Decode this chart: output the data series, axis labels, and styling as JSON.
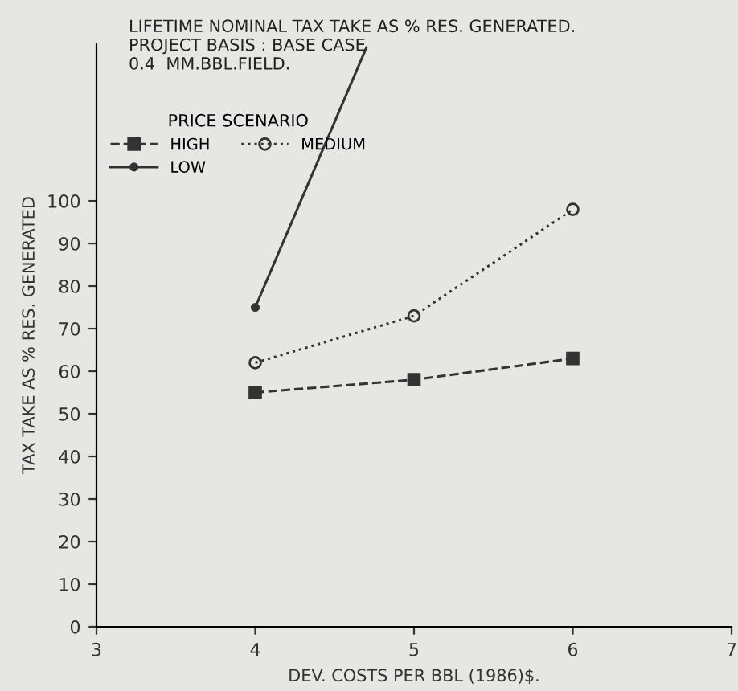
{
  "chart_data": {
    "type": "line",
    "title": "LIFETIME NOMINAL TAX TAKE AS % RES. GENERATED.\nPROJECT BASIS : BASE CASE\n0.4  MM.BBL.FIELD.",
    "xlabel": "DEV. COSTS PER BBL (1986)$.",
    "ylabel": "TAX TAKE AS % RES. GENERATED",
    "legend_title": "PRICE SCENARIO",
    "legend": "top",
    "grid": false,
    "xlim": [
      3,
      7
    ],
    "xticks": [
      3,
      4,
      5,
      6,
      7
    ],
    "ylim": [
      0,
      137
    ],
    "yticks": [
      0,
      10,
      20,
      30,
      40,
      50,
      60,
      70,
      80,
      90,
      100
    ],
    "series": [
      {
        "name": "HIGH",
        "color": "#333333",
        "x": [
          4,
          5,
          6
        ],
        "values": [
          55,
          58,
          63
        ],
        "marker": "square",
        "line_style": "dashed"
      },
      {
        "name": "LOW",
        "color": "#333333",
        "x": [
          4,
          4.7
        ],
        "values": [
          75,
          136
        ],
        "marker": "circle",
        "line_style": "solid"
      },
      {
        "name": "MEDIUM",
        "color": "#333333",
        "x": [
          4,
          5,
          6
        ],
        "values": [
          62,
          73,
          98
        ],
        "marker": "circle",
        "line_style": "dotted"
      }
    ]
  }
}
